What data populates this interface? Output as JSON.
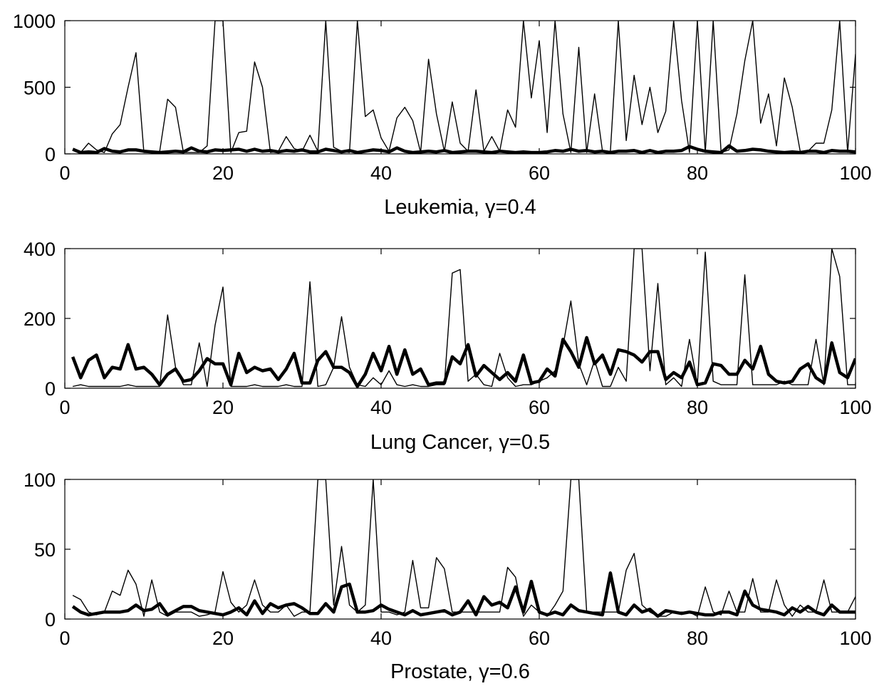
{
  "chart_data": [
    {
      "type": "line",
      "title": "",
      "xlabel": "Leukemia, γ=0.4",
      "ylabel": "",
      "xlim": [
        0,
        100
      ],
      "ylim": [
        0,
        1000
      ],
      "xticks": [
        0,
        20,
        40,
        60,
        80,
        100
      ],
      "yticks": [
        0,
        500,
        1000
      ],
      "grid": false,
      "x": [
        1,
        2,
        3,
        4,
        5,
        6,
        7,
        8,
        9,
        10,
        11,
        12,
        13,
        14,
        15,
        16,
        17,
        18,
        19,
        20,
        21,
        22,
        23,
        24,
        25,
        26,
        27,
        28,
        29,
        30,
        31,
        32,
        33,
        34,
        35,
        36,
        37,
        38,
        39,
        40,
        41,
        42,
        43,
        44,
        45,
        46,
        47,
        48,
        49,
        50,
        51,
        52,
        53,
        54,
        55,
        56,
        57,
        58,
        59,
        60,
        61,
        62,
        63,
        64,
        65,
        66,
        67,
        68,
        69,
        70,
        71,
        72,
        73,
        74,
        75,
        76,
        77,
        78,
        79,
        80,
        81,
        82,
        83,
        84,
        85,
        86,
        87,
        88,
        89,
        90,
        91,
        92,
        93,
        94,
        95,
        96,
        97,
        98,
        99,
        100
      ],
      "series": [
        {
          "style": "thin",
          "values": [
            30,
            10,
            80,
            30,
            10,
            150,
            220,
            500,
            760,
            10,
            10,
            20,
            410,
            350,
            10,
            10,
            10,
            60,
            1000,
            1000,
            10,
            160,
            170,
            690,
            500,
            10,
            20,
            130,
            40,
            20,
            140,
            20,
            1000,
            50,
            20,
            10,
            1000,
            280,
            330,
            120,
            20,
            270,
            350,
            250,
            10,
            710,
            300,
            20,
            390,
            80,
            20,
            480,
            20,
            130,
            20,
            330,
            200,
            1000,
            420,
            850,
            160,
            1000,
            300,
            10,
            800,
            10,
            450,
            20,
            20,
            1000,
            100,
            590,
            220,
            500,
            160,
            320,
            1000,
            400,
            10,
            1000,
            10,
            1000,
            10,
            30,
            300,
            700,
            1000,
            230,
            450,
            60,
            570,
            350,
            20,
            20,
            80,
            80,
            330,
            1000,
            10,
            750
          ]
        },
        {
          "style": "thick",
          "values": [
            35,
            10,
            15,
            10,
            40,
            20,
            15,
            30,
            30,
            20,
            15,
            10,
            15,
            20,
            15,
            45,
            20,
            15,
            30,
            25,
            30,
            35,
            20,
            35,
            20,
            25,
            15,
            25,
            20,
            30,
            15,
            15,
            35,
            25,
            15,
            25,
            10,
            20,
            30,
            25,
            15,
            45,
            20,
            10,
            15,
            20,
            15,
            25,
            10,
            15,
            20,
            20,
            15,
            10,
            20,
            15,
            10,
            15,
            10,
            10,
            15,
            25,
            20,
            35,
            20,
            25,
            15,
            20,
            10,
            20,
            20,
            25,
            10,
            25,
            10,
            20,
            20,
            25,
            55,
            35,
            20,
            15,
            10,
            60,
            20,
            25,
            35,
            30,
            20,
            15,
            10,
            15,
            10,
            20,
            20,
            10,
            25,
            20,
            20,
            15
          ]
        }
      ]
    },
    {
      "type": "line",
      "title": "",
      "xlabel": "Lung Cancer, γ=0.5",
      "ylabel": "",
      "xlim": [
        0,
        100
      ],
      "ylim": [
        0,
        400
      ],
      "xticks": [
        0,
        20,
        40,
        60,
        80,
        100
      ],
      "yticks": [
        0,
        200,
        400
      ],
      "grid": false,
      "x": [
        1,
        2,
        3,
        4,
        5,
        6,
        7,
        8,
        9,
        10,
        11,
        12,
        13,
        14,
        15,
        16,
        17,
        18,
        19,
        20,
        21,
        22,
        23,
        24,
        25,
        26,
        27,
        28,
        29,
        30,
        31,
        32,
        33,
        34,
        35,
        36,
        37,
        38,
        39,
        40,
        41,
        42,
        43,
        44,
        45,
        46,
        47,
        48,
        49,
        50,
        51,
        52,
        53,
        54,
        55,
        56,
        57,
        58,
        59,
        60,
        61,
        62,
        63,
        64,
        65,
        66,
        67,
        68,
        69,
        70,
        71,
        72,
        73,
        74,
        75,
        76,
        77,
        78,
        79,
        80,
        81,
        82,
        83,
        84,
        85,
        86,
        87,
        88,
        89,
        90,
        91,
        92,
        93,
        94,
        95,
        96,
        97,
        98,
        99,
        100
      ],
      "series": [
        {
          "style": "thin",
          "values": [
            5,
            10,
            5,
            5,
            5,
            5,
            5,
            10,
            5,
            5,
            5,
            5,
            210,
            60,
            10,
            10,
            130,
            5,
            180,
            290,
            5,
            5,
            5,
            10,
            5,
            5,
            5,
            10,
            5,
            5,
            305,
            5,
            10,
            60,
            205,
            60,
            10,
            5,
            30,
            10,
            50,
            10,
            5,
            10,
            5,
            5,
            10,
            10,
            330,
            340,
            20,
            40,
            10,
            5,
            100,
            30,
            5,
            10,
            10,
            20,
            30,
            50,
            120,
            250,
            70,
            10,
            80,
            5,
            5,
            60,
            20,
            400,
            400,
            50,
            300,
            10,
            30,
            5,
            140,
            10,
            390,
            20,
            10,
            10,
            10,
            325,
            10,
            10,
            10,
            10,
            20,
            10,
            10,
            10,
            140,
            10,
            400,
            320,
            10,
            10
          ]
        },
        {
          "style": "thick",
          "values": [
            90,
            30,
            80,
            95,
            30,
            60,
            55,
            125,
            55,
            60,
            40,
            10,
            40,
            55,
            20,
            25,
            50,
            85,
            70,
            70,
            10,
            100,
            45,
            60,
            50,
            55,
            25,
            55,
            100,
            15,
            15,
            80,
            105,
            60,
            60,
            45,
            5,
            40,
            100,
            50,
            120,
            40,
            110,
            40,
            55,
            10,
            15,
            15,
            90,
            70,
            125,
            35,
            65,
            45,
            25,
            45,
            20,
            95,
            15,
            20,
            55,
            35,
            140,
            105,
            60,
            145,
            70,
            95,
            40,
            110,
            105,
            95,
            75,
            105,
            105,
            25,
            45,
            30,
            75,
            10,
            15,
            70,
            65,
            40,
            40,
            80,
            55,
            120,
            40,
            20,
            15,
            20,
            55,
            70,
            30,
            15,
            130,
            45,
            30,
            85
          ]
        }
      ]
    },
    {
      "type": "line",
      "title": "",
      "xlabel": "Prostate, γ=0.6",
      "ylabel": "",
      "xlim": [
        0,
        100
      ],
      "ylim": [
        0,
        100
      ],
      "xticks": [
        0,
        20,
        40,
        60,
        80,
        100
      ],
      "yticks": [
        0,
        50,
        100
      ],
      "grid": false,
      "x": [
        1,
        2,
        3,
        4,
        5,
        6,
        7,
        8,
        9,
        10,
        11,
        12,
        13,
        14,
        15,
        16,
        17,
        18,
        19,
        20,
        21,
        22,
        23,
        24,
        25,
        26,
        27,
        28,
        29,
        30,
        31,
        32,
        33,
        34,
        35,
        36,
        37,
        38,
        39,
        40,
        41,
        42,
        43,
        44,
        45,
        46,
        47,
        48,
        49,
        50,
        51,
        52,
        53,
        54,
        55,
        56,
        57,
        58,
        59,
        60,
        61,
        62,
        63,
        64,
        65,
        66,
        67,
        68,
        69,
        70,
        71,
        72,
        73,
        74,
        75,
        76,
        77,
        78,
        79,
        80,
        81,
        82,
        83,
        84,
        85,
        86,
        87,
        88,
        89,
        90,
        91,
        92,
        93,
        94,
        95,
        96,
        97,
        98,
        99,
        100
      ],
      "series": [
        {
          "style": "thin",
          "values": [
            17,
            14,
            5,
            3,
            5,
            20,
            17,
            35,
            25,
            2,
            28,
            5,
            2,
            5,
            5,
            5,
            2,
            3,
            5,
            34,
            12,
            5,
            10,
            28,
            10,
            5,
            5,
            10,
            2,
            5,
            5,
            100,
            100,
            10,
            52,
            10,
            5,
            10,
            100,
            5,
            5,
            3,
            5,
            42,
            8,
            8,
            44,
            36,
            5,
            5,
            5,
            5,
            5,
            5,
            5,
            37,
            30,
            2,
            10,
            5,
            2,
            10,
            20,
            100,
            100,
            5,
            5,
            5,
            5,
            5,
            35,
            47,
            10,
            5,
            2,
            2,
            5,
            5,
            5,
            2,
            23,
            5,
            3,
            20,
            5,
            5,
            29,
            5,
            5,
            28,
            10,
            2,
            10,
            5,
            5,
            28,
            5,
            5,
            5,
            16
          ]
        },
        {
          "style": "thick",
          "values": [
            9,
            5,
            3,
            4,
            5,
            5,
            5,
            6,
            10,
            6,
            7,
            11,
            3,
            6,
            9,
            9,
            6,
            5,
            4,
            3,
            5,
            8,
            3,
            13,
            4,
            11,
            8,
            10,
            11,
            8,
            4,
            4,
            11,
            5,
            23,
            25,
            5,
            5,
            6,
            10,
            7,
            5,
            3,
            6,
            3,
            4,
            5,
            6,
            3,
            5,
            13,
            3,
            16,
            10,
            12,
            8,
            23,
            5,
            27,
            5,
            3,
            5,
            3,
            10,
            6,
            5,
            4,
            3,
            33,
            5,
            3,
            10,
            5,
            7,
            2,
            6,
            5,
            4,
            5,
            4,
            3,
            3,
            5,
            5,
            3,
            20,
            10,
            7,
            6,
            5,
            3,
            8,
            5,
            9,
            5,
            3,
            10,
            5,
            5,
            5
          ]
        }
      ]
    }
  ]
}
